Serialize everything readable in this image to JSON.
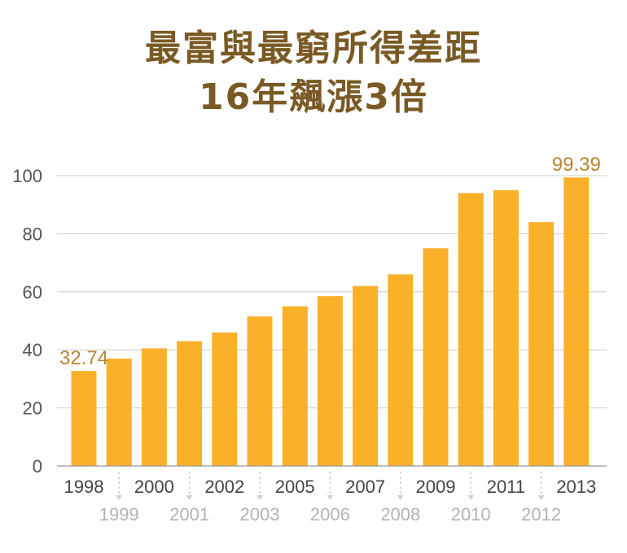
{
  "chart_data": {
    "type": "bar",
    "title_line1": "最富與最窮所得差距",
    "title_line2": "16年飆漲3倍",
    "categories": [
      "1998",
      "1999",
      "2000",
      "2001",
      "2002",
      "2003",
      "2005",
      "2006",
      "2007",
      "2008",
      "2009",
      "2010",
      "2011",
      "2012",
      "2013"
    ],
    "values": [
      32.74,
      37,
      40.5,
      43,
      46,
      51.5,
      55,
      58.5,
      62,
      66,
      75,
      94,
      95,
      84,
      99.39
    ],
    "data_labels": [
      {
        "index": 0,
        "text": "32.74"
      },
      {
        "index": 14,
        "text": "99.39"
      }
    ],
    "yticks": [
      0,
      20,
      40,
      60,
      80,
      100
    ],
    "ylim": [
      0,
      100
    ],
    "xlabel": "",
    "ylabel": "",
    "grid": true,
    "colors": {
      "bar": "#fbb02a",
      "title": "#7a5a24",
      "data_label": "#b98632",
      "grid": "#cccccc",
      "tick_top": "#444444",
      "tick_bottom": "#b3b3b3",
      "connector": "#d0d0d0"
    }
  }
}
